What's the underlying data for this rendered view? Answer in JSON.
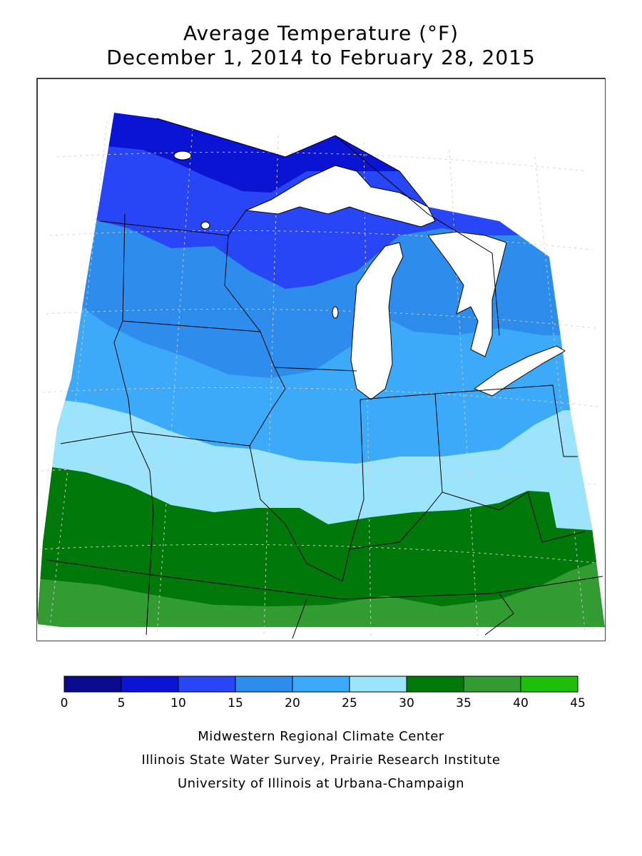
{
  "header": {
    "title_line1": "Average Temperature (°F)",
    "title_line2": "December 1, 2014 to February 28, 2015"
  },
  "legend": {
    "labels": [
      "0",
      "5",
      "10",
      "15",
      "20",
      "25",
      "30",
      "35",
      "40",
      "45"
    ],
    "bins": [
      {
        "min": 0,
        "max": 5,
        "color": "#0a0a8c"
      },
      {
        "min": 5,
        "max": 10,
        "color": "#0a14d2"
      },
      {
        "min": 10,
        "max": 15,
        "color": "#2846f5"
      },
      {
        "min": 15,
        "max": 20,
        "color": "#2d8cec"
      },
      {
        "min": 20,
        "max": 25,
        "color": "#3caaf8"
      },
      {
        "min": 25,
        "max": 30,
        "color": "#9be4fc"
      },
      {
        "min": 30,
        "max": 35,
        "color": "#00780a"
      },
      {
        "min": 35,
        "max": 40,
        "color": "#329b32"
      },
      {
        "min": 40,
        "max": 45,
        "color": "#1ebe0a"
      }
    ]
  },
  "credits": {
    "line1": "Midwestern Regional Climate Center",
    "line2": "Illinois State Water Survey, Prairie Research Institute",
    "line3": "University of Illinois at Urbana-Champaign"
  },
  "colors": {
    "lake": "#ffffff",
    "border": "#000000",
    "grid": "#c8c8c8"
  }
}
